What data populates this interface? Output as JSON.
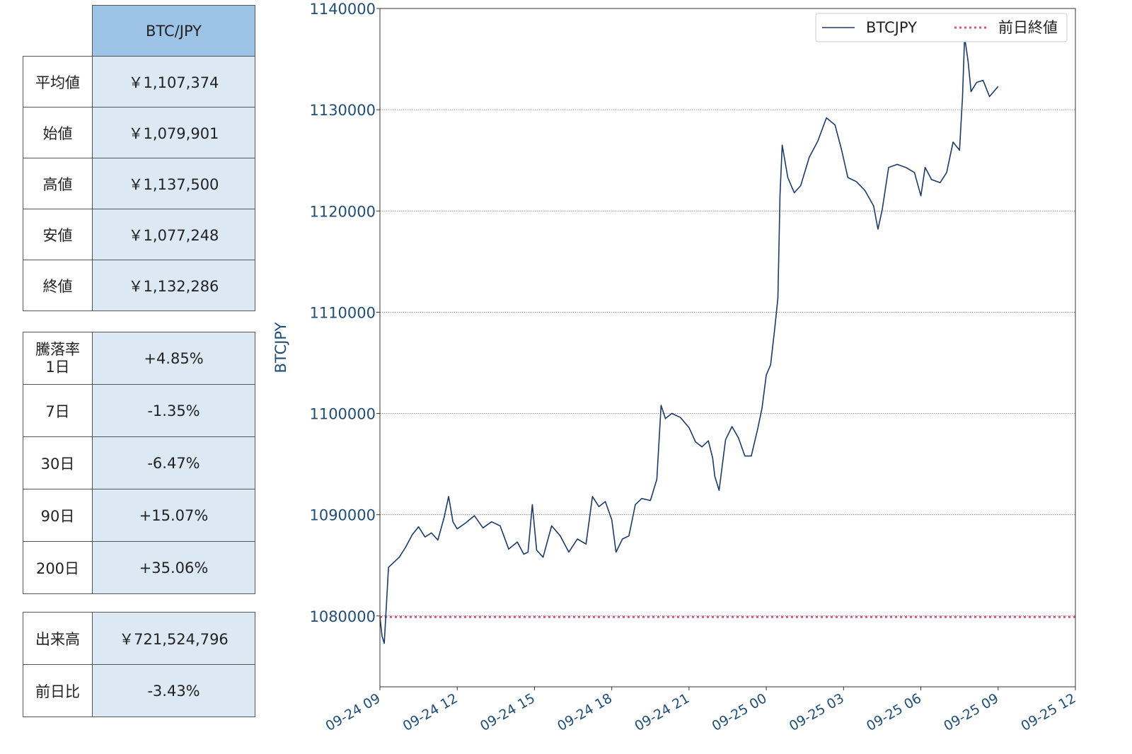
{
  "price_table": {
    "header": "BTC/JPY",
    "rows": [
      {
        "label": "平均値",
        "value": "￥1,107,374"
      },
      {
        "label": "始値",
        "value": "￥1,079,901"
      },
      {
        "label": "高値",
        "value": "￥1,137,500"
      },
      {
        "label": "安値",
        "value": "￥1,077,248"
      },
      {
        "label": "終値",
        "value": "￥1,132,286"
      }
    ]
  },
  "change_table": {
    "title": "騰落率",
    "rows": [
      {
        "label": "1日",
        "value": "+4.85%"
      },
      {
        "label": "7日",
        "value": "-1.35%"
      },
      {
        "label": "30日",
        "value": "-6.47%"
      },
      {
        "label": "90日",
        "value": "+15.07%"
      },
      {
        "label": "200日",
        "value": "+35.06%"
      }
    ]
  },
  "volume_table": {
    "rows": [
      {
        "label": "出来高",
        "value": "￥721,524,796"
      },
      {
        "label": "前日比",
        "value": "-3.43%"
      }
    ]
  },
  "colors": {
    "series": "#1a3a6b",
    "reference": "#e0527a",
    "tick_text": "#1f4e79",
    "header_fill": "#9dc3e6",
    "value_fill": "#dce9f5"
  },
  "chart_data": {
    "type": "line",
    "ylabel": "BTCJPY",
    "ylim": [
      1073000,
      1140000
    ],
    "y_ticks": [
      "1080000",
      "1090000",
      "1100000",
      "1110000",
      "1120000",
      "1130000",
      "1140000"
    ],
    "xlim": [
      "09-24 09:00",
      "09-25 12:00"
    ],
    "x_ticks": [
      "09-24 09",
      "09-24 12",
      "09-24 15",
      "09-24 18",
      "09-24 21",
      "09-25 00",
      "09-25 03",
      "09-25 06",
      "09-25 09",
      "09-25 12"
    ],
    "grid": "horizontal",
    "legend_position": "top-right",
    "series": [
      {
        "name": "BTCJPY",
        "points": [
          [
            "09-24 09:00",
            1079900
          ],
          [
            "09-24 09:05",
            1078000
          ],
          [
            "09-24 09:10",
            1077300
          ],
          [
            "09-24 09:15",
            1081000
          ],
          [
            "09-24 09:20",
            1084800
          ],
          [
            "09-24 09:30",
            1085200
          ],
          [
            "09-24 09:45",
            1085800
          ],
          [
            "09-24 10:00",
            1086800
          ],
          [
            "09-24 10:15",
            1088000
          ],
          [
            "09-24 10:30",
            1088800
          ],
          [
            "09-24 10:45",
            1087800
          ],
          [
            "09-24 11:00",
            1088200
          ],
          [
            "09-24 11:15",
            1087500
          ],
          [
            "09-24 11:30",
            1089800
          ],
          [
            "09-24 11:40",
            1091800
          ],
          [
            "09-24 11:50",
            1089300
          ],
          [
            "09-24 12:00",
            1088600
          ],
          [
            "09-24 12:20",
            1089200
          ],
          [
            "09-24 12:40",
            1089900
          ],
          [
            "09-24 13:00",
            1088700
          ],
          [
            "09-24 13:20",
            1089300
          ],
          [
            "09-24 13:40",
            1088900
          ],
          [
            "09-24 14:00",
            1086600
          ],
          [
            "09-24 14:20",
            1087300
          ],
          [
            "09-24 14:35",
            1086100
          ],
          [
            "09-24 14:45",
            1086300
          ],
          [
            "09-24 14:55",
            1091000
          ],
          [
            "09-24 15:05",
            1086500
          ],
          [
            "09-24 15:20",
            1085800
          ],
          [
            "09-24 15:40",
            1088900
          ],
          [
            "09-24 16:00",
            1087900
          ],
          [
            "09-24 16:20",
            1086300
          ],
          [
            "09-24 16:40",
            1087600
          ],
          [
            "09-24 17:00",
            1087100
          ],
          [
            "09-24 17:15",
            1091800
          ],
          [
            "09-24 17:30",
            1090800
          ],
          [
            "09-24 17:45",
            1091300
          ],
          [
            "09-24 18:00",
            1089500
          ],
          [
            "09-24 18:10",
            1086300
          ],
          [
            "09-24 18:25",
            1087600
          ],
          [
            "09-24 18:40",
            1087900
          ],
          [
            "09-24 18:55",
            1091000
          ],
          [
            "09-24 19:10",
            1091600
          ],
          [
            "09-24 19:30",
            1091400
          ],
          [
            "09-24 19:45",
            1093500
          ],
          [
            "09-24 19:55",
            1100800
          ],
          [
            "09-24 20:05",
            1099500
          ],
          [
            "09-24 20:20",
            1100000
          ],
          [
            "09-24 20:40",
            1099600
          ],
          [
            "09-24 21:00",
            1098600
          ],
          [
            "09-24 21:15",
            1097200
          ],
          [
            "09-24 21:30",
            1096700
          ],
          [
            "09-24 21:45",
            1097300
          ],
          [
            "09-24 21:55",
            1095600
          ],
          [
            "09-24 22:00",
            1093800
          ],
          [
            "09-24 22:10",
            1092400
          ],
          [
            "09-24 22:25",
            1097400
          ],
          [
            "09-24 22:40",
            1098700
          ],
          [
            "09-24 22:55",
            1097600
          ],
          [
            "09-24 23:10",
            1095800
          ],
          [
            "09-24 23:25",
            1095800
          ],
          [
            "09-24 23:40",
            1098500
          ],
          [
            "09-24 23:50",
            1100500
          ],
          [
            "09-25 00:00",
            1103800
          ],
          [
            "09-25 00:10",
            1104800
          ],
          [
            "09-25 00:20",
            1108500
          ],
          [
            "09-25 00:27",
            1111400
          ],
          [
            "09-25 00:32",
            1121600
          ],
          [
            "09-25 00:37",
            1126500
          ],
          [
            "09-25 00:50",
            1123300
          ],
          [
            "09-25 01:05",
            1121800
          ],
          [
            "09-25 01:20",
            1122500
          ],
          [
            "09-25 01:40",
            1125300
          ],
          [
            "09-25 02:00",
            1126900
          ],
          [
            "09-25 02:20",
            1129200
          ],
          [
            "09-25 02:40",
            1128500
          ],
          [
            "09-25 02:55",
            1126100
          ],
          [
            "09-25 03:10",
            1123300
          ],
          [
            "09-25 03:30",
            1122900
          ],
          [
            "09-25 03:50",
            1122000
          ],
          [
            "09-25 04:10",
            1120500
          ],
          [
            "09-25 04:20",
            1118200
          ],
          [
            "09-25 04:30",
            1120100
          ],
          [
            "09-25 04:45",
            1124300
          ],
          [
            "09-25 05:05",
            1124600
          ],
          [
            "09-25 05:25",
            1124300
          ],
          [
            "09-25 05:45",
            1123800
          ],
          [
            "09-25 06:00",
            1121500
          ],
          [
            "09-25 06:10",
            1124300
          ],
          [
            "09-25 06:25",
            1123100
          ],
          [
            "09-25 06:45",
            1122800
          ],
          [
            "09-25 07:00",
            1123800
          ],
          [
            "09-25 07:15",
            1126800
          ],
          [
            "09-25 07:30",
            1126000
          ],
          [
            "09-25 07:37",
            1131200
          ],
          [
            "09-25 07:42",
            1137200
          ],
          [
            "09-25 07:50",
            1134800
          ],
          [
            "09-25 07:57",
            1131800
          ],
          [
            "09-25 08:10",
            1132700
          ],
          [
            "09-25 08:25",
            1132900
          ],
          [
            "09-25 08:40",
            1131300
          ],
          [
            "09-25 09:00",
            1132300
          ]
        ]
      },
      {
        "name": "前日終値",
        "style": "dotted",
        "y": 1079900
      }
    ]
  }
}
